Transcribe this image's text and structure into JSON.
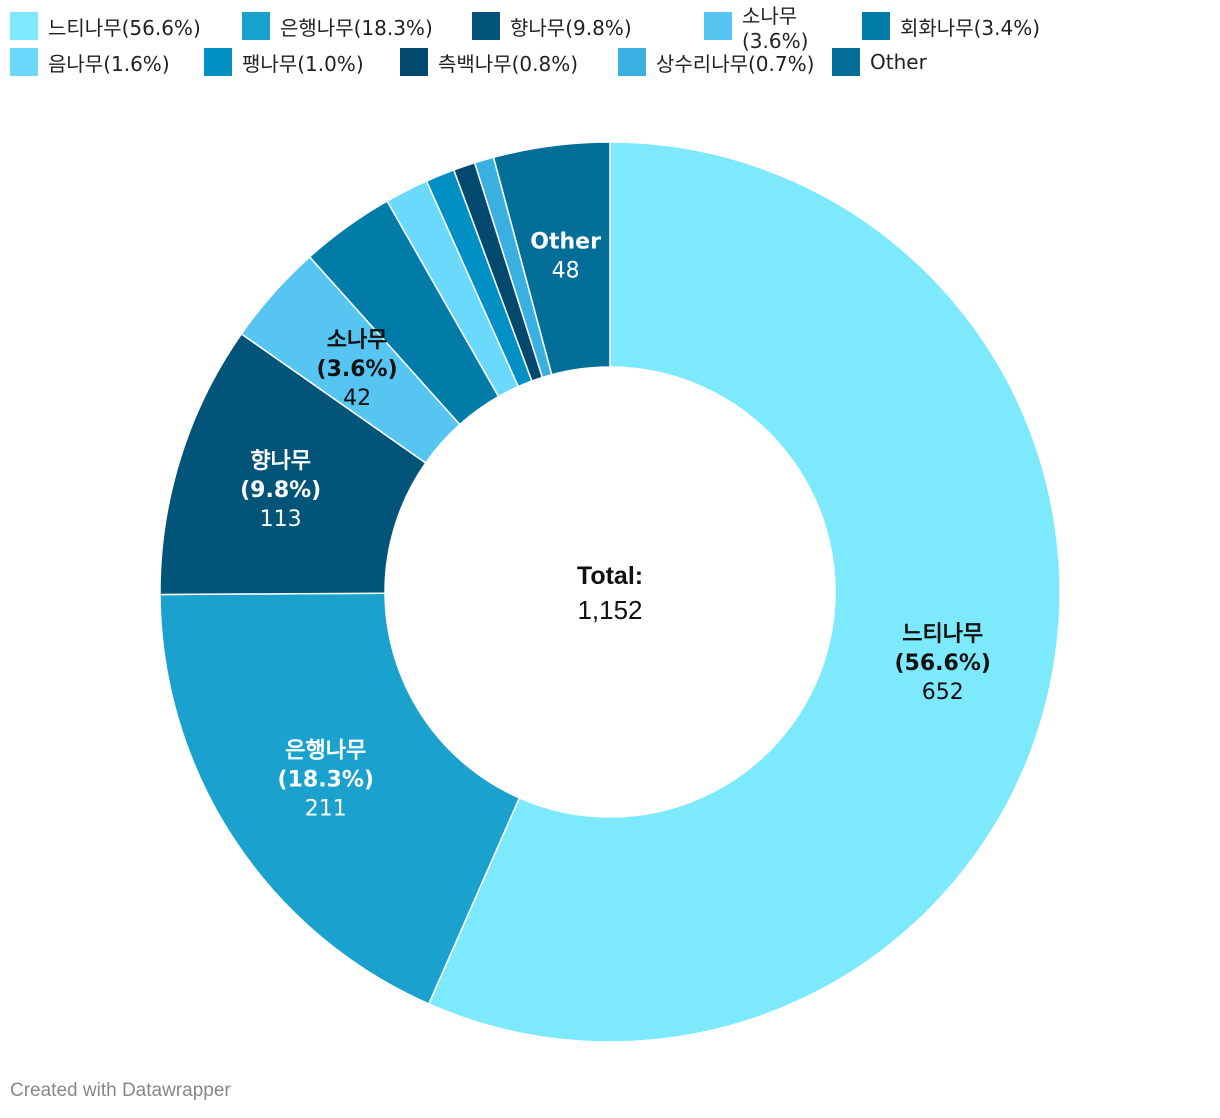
{
  "chart_data": {
    "type": "donut",
    "title": "",
    "total": {
      "label": "Total:",
      "value": "1,152"
    },
    "slices": [
      {
        "name": "느티나무",
        "legend": "느티나무(56.6%)",
        "percent": "(56.6%)",
        "value": 652,
        "value_label": "652",
        "color": "#7de9fd",
        "label_color": "#111111",
        "show_label": true,
        "show_percent": true
      },
      {
        "name": "은행나무",
        "legend": "은행나무(18.3%)",
        "percent": "(18.3%)",
        "value": 211,
        "value_label": "211",
        "color": "#1aa1cd",
        "label_color": "#ffffff",
        "show_label": true,
        "show_percent": true
      },
      {
        "name": "향나무",
        "legend": "향나무(9.8%)",
        "percent": "(9.8%)",
        "value": 113,
        "value_label": "113",
        "color": "#025478",
        "label_color": "#ffffff",
        "show_label": true,
        "show_percent": true
      },
      {
        "name": "소나무",
        "legend": "소나무(3.6%)",
        "percent": "(3.6%)",
        "value": 42,
        "value_label": "42",
        "color": "#56c5f2",
        "label_color": "#111111",
        "show_label": true,
        "show_percent": true
      },
      {
        "name": "회화나무",
        "legend": "회화나무(3.4%)",
        "percent": "(3.4%)",
        "value": 39,
        "value_label": "",
        "color": "#017ba8",
        "label_color": "#ffffff",
        "show_label": false,
        "show_percent": false
      },
      {
        "name": "음나무",
        "legend": "음나무(1.6%)",
        "percent": "(1.6%)",
        "value": 18,
        "value_label": "",
        "color": "#6ad9fb",
        "label_color": "#111111",
        "show_label": false,
        "show_percent": false
      },
      {
        "name": "팽나무",
        "legend": "팽나무(1.0%)",
        "percent": "(1.0%)",
        "value": 12,
        "value_label": "",
        "color": "#0090c4",
        "label_color": "#ffffff",
        "show_label": false,
        "show_percent": false
      },
      {
        "name": "측백나무",
        "legend": "측백나무(0.8%)",
        "percent": "(0.8%)",
        "value": 9,
        "value_label": "",
        "color": "#03486d",
        "label_color": "#ffffff",
        "show_label": false,
        "show_percent": false
      },
      {
        "name": "상수리나무",
        "legend": "상수리나무(0.7%)",
        "percent": "(0.7%)",
        "value": 8,
        "value_label": "",
        "color": "#3ab0e0",
        "label_color": "#ffffff",
        "show_label": false,
        "show_percent": false
      },
      {
        "name": "Other",
        "legend": "Other",
        "percent": "",
        "value": 48,
        "value_label": "48",
        "color": "#036e98",
        "label_color": "#ffffff",
        "show_label": true,
        "show_percent": false
      }
    ]
  },
  "footer": {
    "credit": "Created with Datawrapper"
  }
}
